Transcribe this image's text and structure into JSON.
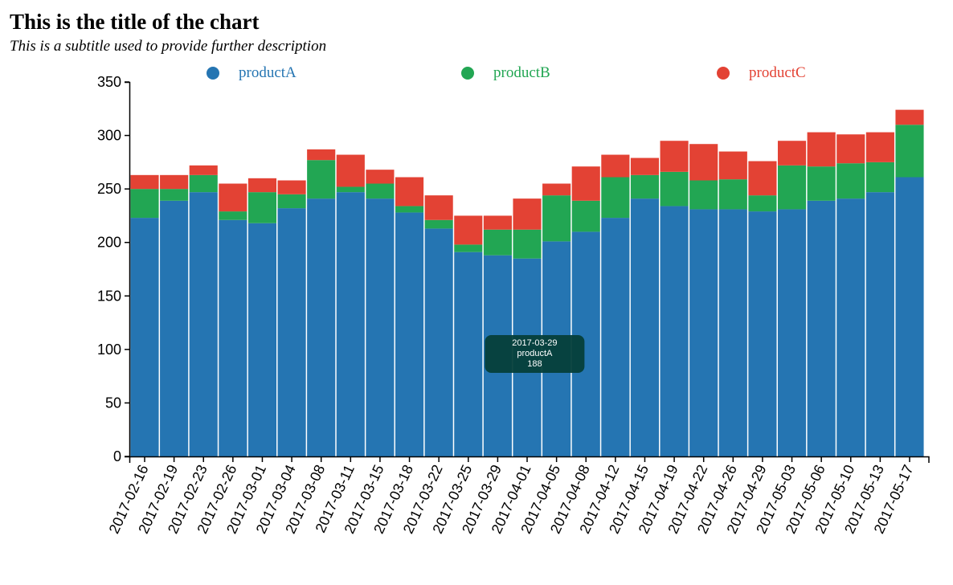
{
  "chart_data": {
    "type": "bar",
    "stacked": true,
    "title": "This is the title of the chart",
    "subtitle": "This is a subtitle used to provide further description",
    "xlabel": "",
    "ylabel": "",
    "ylim": [
      0,
      350
    ],
    "yticks": [
      0,
      50,
      100,
      150,
      200,
      250,
      300,
      350
    ],
    "grid": false,
    "legend_position": "top",
    "categories": [
      "2017-02-16",
      "2017-02-19",
      "2017-02-23",
      "2017-02-26",
      "2017-03-01",
      "2017-03-04",
      "2017-03-08",
      "2017-03-11",
      "2017-03-15",
      "2017-03-18",
      "2017-03-22",
      "2017-03-25",
      "2017-03-29",
      "2017-04-01",
      "2017-04-05",
      "2017-04-08",
      "2017-04-12",
      "2017-04-15",
      "2017-04-19",
      "2017-04-22",
      "2017-04-26",
      "2017-04-29",
      "2017-05-03",
      "2017-05-06",
      "2017-05-10",
      "2017-05-13",
      "2017-05-17"
    ],
    "series": [
      {
        "name": "productA",
        "color": "#2575b2",
        "values": [
          223,
          239,
          247,
          221,
          218,
          232,
          241,
          247,
          241,
          228,
          213,
          191,
          188,
          185,
          201,
          210,
          223,
          241,
          234,
          231,
          231,
          229,
          231,
          239,
          241,
          247,
          261
        ]
      },
      {
        "name": "productB",
        "color": "#22a653",
        "values": [
          27,
          11,
          16,
          8,
          29,
          13,
          36,
          5,
          14,
          6,
          8,
          7,
          24,
          27,
          43,
          29,
          38,
          22,
          32,
          27,
          28,
          15,
          41,
          32,
          33,
          28,
          49
        ]
      },
      {
        "name": "productC",
        "color": "#e34234",
        "values": [
          13,
          13,
          9,
          26,
          13,
          13,
          10,
          30,
          13,
          27,
          23,
          27,
          13,
          29,
          11,
          32,
          21,
          16,
          29,
          34,
          26,
          32,
          23,
          32,
          27,
          28,
          14
        ]
      }
    ],
    "tooltip": {
      "category": "2017-03-29",
      "series": "productA",
      "value": "188"
    }
  }
}
